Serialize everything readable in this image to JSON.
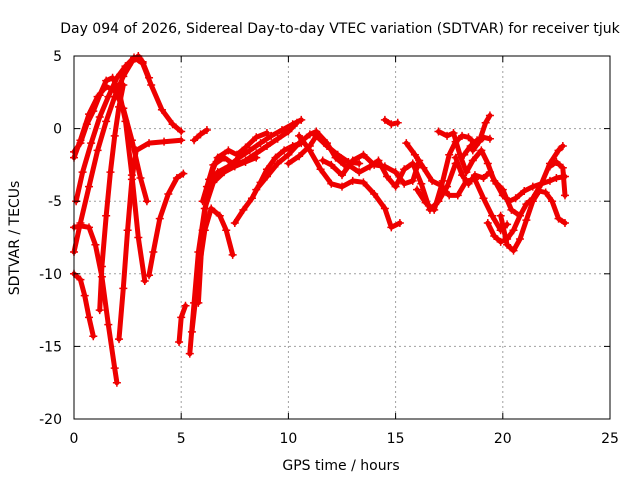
{
  "chart_data": {
    "type": "scatter",
    "title": "Day 094 of 2026, Sidereal Day-to-day VTEC variation (SDTVAR) for receiver tjuk",
    "xlabel": "GPS time / hours",
    "ylabel": "SDTVAR / TECUs",
    "xlim": [
      0,
      25
    ],
    "ylim": [
      -20,
      5
    ],
    "xticks": [
      "0",
      "5",
      "10",
      "15",
      "20",
      "25"
    ],
    "yticks": [
      "5",
      "0",
      "-5",
      "-10",
      "-15",
      "-20"
    ],
    "grid": true,
    "marker": "+",
    "color": "#ee0000",
    "series": [
      {
        "name": "s1",
        "points": [
          [
            0.0,
            -1.6
          ],
          [
            0.3,
            -1.0
          ],
          [
            0.6,
            0.3
          ],
          [
            0.9,
            1.2
          ],
          [
            1.2,
            2.3
          ],
          [
            1.5,
            3.3
          ],
          [
            1.8,
            3.5
          ],
          [
            2.1,
            2.6
          ],
          [
            2.4,
            0.5
          ],
          [
            2.7,
            -3.2
          ],
          [
            3.0,
            -7.5
          ],
          [
            3.3,
            -10.5
          ]
        ]
      },
      {
        "name": "s2",
        "points": [
          [
            0.0,
            -2.0
          ],
          [
            0.3,
            -0.8
          ],
          [
            0.7,
            1.0
          ],
          [
            1.1,
            2.2
          ],
          [
            1.5,
            2.9
          ],
          [
            1.9,
            2.6
          ],
          [
            2.3,
            1.4
          ],
          [
            2.7,
            -0.8
          ],
          [
            3.1,
            -3.4
          ],
          [
            3.4,
            -5.0
          ]
        ]
      },
      {
        "name": "s3",
        "points": [
          [
            0.1,
            -5.0
          ],
          [
            0.4,
            -3.0
          ],
          [
            0.8,
            -1.0
          ],
          [
            1.2,
            0.8
          ],
          [
            1.6,
            2.2
          ],
          [
            2.0,
            3.5
          ],
          [
            2.4,
            4.3
          ],
          [
            2.8,
            4.9
          ],
          [
            3.2,
            4.5
          ],
          [
            3.6,
            3.0
          ],
          [
            4.1,
            1.3
          ],
          [
            4.6,
            0.3
          ],
          [
            5.0,
            -0.2
          ]
        ]
      },
      {
        "name": "s4",
        "points": [
          [
            0.0,
            -8.5
          ],
          [
            0.3,
            -6.5
          ],
          [
            0.7,
            -4.0
          ],
          [
            1.1,
            -1.5
          ],
          [
            1.5,
            0.5
          ],
          [
            1.9,
            2.2
          ],
          [
            2.3,
            3.6
          ],
          [
            2.7,
            4.6
          ],
          [
            3.0,
            5.0
          ],
          [
            3.2,
            4.6
          ],
          [
            3.5,
            3.5
          ]
        ]
      },
      {
        "name": "s5",
        "points": [
          [
            0.0,
            -6.8
          ],
          [
            0.3,
            -6.7
          ],
          [
            0.7,
            -6.8
          ],
          [
            1.0,
            -8.0
          ],
          [
            1.3,
            -10.2
          ],
          [
            1.6,
            -13.5
          ],
          [
            1.9,
            -16.5
          ],
          [
            2.0,
            -17.5
          ]
        ]
      },
      {
        "name": "s6",
        "points": [
          [
            0.0,
            -10.0
          ],
          [
            0.3,
            -10.4
          ],
          [
            0.5,
            -11.5
          ],
          [
            0.7,
            -13.0
          ],
          [
            0.9,
            -14.3
          ]
        ]
      },
      {
        "name": "s7",
        "points": [
          [
            1.2,
            -12.5
          ],
          [
            1.3,
            -9.5
          ],
          [
            1.5,
            -6.0
          ],
          [
            1.7,
            -3.0
          ],
          [
            1.9,
            -0.5
          ],
          [
            2.1,
            1.5
          ],
          [
            2.3,
            3.0
          ]
        ]
      },
      {
        "name": "s8",
        "points": [
          [
            2.1,
            -14.5
          ],
          [
            2.3,
            -11.0
          ],
          [
            2.5,
            -7.0
          ],
          [
            2.7,
            -3.5
          ],
          [
            2.9,
            -1.5
          ],
          [
            3.5,
            -1.0
          ],
          [
            4.2,
            -0.9
          ],
          [
            5.0,
            -0.8
          ]
        ]
      },
      {
        "name": "s9",
        "points": [
          [
            3.5,
            -10.1
          ],
          [
            3.7,
            -8.5
          ],
          [
            4.0,
            -6.2
          ],
          [
            4.4,
            -4.5
          ],
          [
            4.8,
            -3.4
          ],
          [
            5.1,
            -3.1
          ]
        ]
      },
      {
        "name": "s10",
        "points": [
          [
            4.9,
            -14.7
          ],
          [
            5.0,
            -13.0
          ],
          [
            5.2,
            -12.2
          ]
        ]
      },
      {
        "name": "s11",
        "points": [
          [
            5.4,
            -15.5
          ],
          [
            5.6,
            -12.0
          ],
          [
            5.8,
            -8.5
          ],
          [
            6.1,
            -5.5
          ],
          [
            6.5,
            -3.7
          ],
          [
            7.0,
            -3.0
          ],
          [
            7.5,
            -2.6
          ],
          [
            8.0,
            -2.3
          ],
          [
            8.5,
            -2.0
          ]
        ]
      },
      {
        "name": "s12",
        "points": [
          [
            5.5,
            -14.0
          ],
          [
            5.8,
            -10.0
          ],
          [
            6.1,
            -7.0
          ],
          [
            6.4,
            -5.5
          ],
          [
            6.8,
            -6.0
          ],
          [
            7.1,
            -7.0
          ],
          [
            7.4,
            -8.7
          ]
        ]
      },
      {
        "name": "s13",
        "points": [
          [
            5.6,
            -0.8
          ],
          [
            5.9,
            -0.4
          ],
          [
            6.2,
            -0.1
          ]
        ]
      },
      {
        "name": "s14",
        "points": [
          [
            5.8,
            -12.0
          ],
          [
            6.0,
            -7.0
          ],
          [
            6.3,
            -3.5
          ],
          [
            6.7,
            -2.0
          ],
          [
            7.2,
            -1.5
          ],
          [
            7.6,
            -1.8
          ],
          [
            8.0,
            -1.3
          ],
          [
            8.5,
            -0.6
          ],
          [
            9.0,
            -0.3
          ]
        ]
      },
      {
        "name": "s15",
        "points": [
          [
            6.0,
            -5.0
          ],
          [
            6.5,
            -2.5
          ],
          [
            7.0,
            -2.0
          ],
          [
            7.5,
            -2.5
          ],
          [
            8.0,
            -2.2
          ],
          [
            8.5,
            -1.7
          ],
          [
            9.0,
            -1.2
          ],
          [
            9.5,
            -0.7
          ],
          [
            10.0,
            -0.2
          ],
          [
            10.4,
            0.4
          ]
        ]
      },
      {
        "name": "s16",
        "points": [
          [
            6.2,
            -4.0
          ],
          [
            6.7,
            -3.0
          ],
          [
            7.2,
            -2.6
          ],
          [
            7.7,
            -2.0
          ],
          [
            8.2,
            -1.5
          ],
          [
            8.7,
            -1.0
          ],
          [
            9.2,
            -0.5
          ],
          [
            9.7,
            -0.1
          ],
          [
            10.2,
            0.3
          ],
          [
            10.6,
            0.6
          ]
        ]
      },
      {
        "name": "s17",
        "points": [
          [
            7.5,
            -6.5
          ],
          [
            7.9,
            -5.6
          ],
          [
            8.3,
            -4.8
          ],
          [
            8.7,
            -3.7
          ],
          [
            9.0,
            -2.8
          ],
          [
            9.4,
            -2.0
          ],
          [
            9.8,
            -1.5
          ],
          [
            10.2,
            -1.2
          ],
          [
            10.6,
            -1.0
          ]
        ]
      },
      {
        "name": "s18",
        "points": [
          [
            8.5,
            -4.2
          ],
          [
            9.0,
            -3.3
          ],
          [
            9.5,
            -2.4
          ],
          [
            10.0,
            -1.8
          ],
          [
            10.5,
            -1.0
          ],
          [
            11.0,
            -0.4
          ],
          [
            11.3,
            -0.2
          ],
          [
            11.8,
            -1.0
          ],
          [
            12.2,
            -2.0
          ],
          [
            12.6,
            -2.5
          ]
        ]
      },
      {
        "name": "s19",
        "points": [
          [
            10.0,
            -2.4
          ],
          [
            10.5,
            -1.9
          ],
          [
            11.0,
            -1.2
          ],
          [
            11.3,
            -0.5
          ],
          [
            11.8,
            -1.2
          ],
          [
            12.3,
            -1.8
          ],
          [
            12.8,
            -2.3
          ],
          [
            13.3,
            -2.4
          ]
        ]
      },
      {
        "name": "s20",
        "points": [
          [
            10.5,
            -0.5
          ],
          [
            11.0,
            -1.5
          ],
          [
            11.5,
            -2.8
          ],
          [
            12.0,
            -3.8
          ],
          [
            12.5,
            -4.0
          ],
          [
            13.0,
            -3.6
          ],
          [
            13.5,
            -3.7
          ],
          [
            14.0,
            -4.5
          ],
          [
            14.5,
            -5.5
          ],
          [
            14.8,
            -6.8
          ],
          [
            15.2,
            -6.5
          ]
        ]
      },
      {
        "name": "s21",
        "points": [
          [
            11.6,
            -2.2
          ],
          [
            12.0,
            -2.5
          ],
          [
            12.5,
            -3.2
          ],
          [
            13.0,
            -2.2
          ],
          [
            13.5,
            -1.8
          ],
          [
            14.0,
            -2.5
          ],
          [
            14.5,
            -2.6
          ],
          [
            15.0,
            -3.0
          ],
          [
            15.4,
            -3.8
          ],
          [
            15.8,
            -3.6
          ],
          [
            16.1,
            -2.2
          ]
        ]
      },
      {
        "name": "s22",
        "points": [
          [
            12.8,
            -2.5
          ],
          [
            13.3,
            -3.0
          ],
          [
            13.8,
            -2.6
          ],
          [
            14.2,
            -2.2
          ],
          [
            14.6,
            -3.3
          ],
          [
            15.0,
            -4.0
          ],
          [
            15.4,
            -2.8
          ],
          [
            15.8,
            -2.4
          ],
          [
            16.2,
            -3.8
          ],
          [
            16.6,
            -5.6
          ],
          [
            17.0,
            -5.0
          ],
          [
            17.4,
            -4.0
          ],
          [
            17.8,
            -2.4
          ]
        ]
      },
      {
        "name": "s23",
        "points": [
          [
            14.5,
            0.6
          ],
          [
            14.8,
            0.3
          ],
          [
            15.1,
            0.4
          ]
        ]
      },
      {
        "name": "s24",
        "points": [
          [
            15.5,
            -1.0
          ],
          [
            15.9,
            -1.8
          ],
          [
            16.3,
            -2.7
          ],
          [
            16.7,
            -3.6
          ],
          [
            17.1,
            -3.9
          ],
          [
            17.5,
            -4.6
          ],
          [
            17.9,
            -4.6
          ],
          [
            18.3,
            -3.6
          ],
          [
            18.7,
            -3.5
          ],
          [
            19.1,
            -4.8
          ],
          [
            19.5,
            -6.0
          ],
          [
            19.9,
            -7.0
          ],
          [
            20.2,
            -6.6
          ]
        ]
      },
      {
        "name": "s25",
        "points": [
          [
            16.0,
            -4.2
          ],
          [
            16.4,
            -5.1
          ],
          [
            16.8,
            -5.6
          ],
          [
            17.2,
            -3.6
          ],
          [
            17.5,
            -1.8
          ],
          [
            17.8,
            -0.9
          ],
          [
            18.1,
            -0.5
          ],
          [
            18.4,
            -0.6
          ],
          [
            18.7,
            -1.0
          ],
          [
            19.0,
            -0.7
          ]
        ]
      },
      {
        "name": "s26",
        "points": [
          [
            17.0,
            -0.2
          ],
          [
            17.4,
            -0.5
          ],
          [
            17.7,
            -0.3
          ],
          [
            18.0,
            -1.8
          ],
          [
            18.3,
            -3.0
          ],
          [
            18.6,
            -2.2
          ],
          [
            19.0,
            -1.5
          ],
          [
            19.3,
            -2.4
          ],
          [
            19.6,
            -3.6
          ],
          [
            20.0,
            -4.2
          ],
          [
            20.4,
            -5.6
          ],
          [
            20.8,
            -6.0
          ]
        ]
      },
      {
        "name": "s27",
        "points": [
          [
            17.8,
            -2.0
          ],
          [
            18.1,
            -3.2
          ],
          [
            18.4,
            -3.8
          ],
          [
            18.7,
            -3.2
          ],
          [
            19.1,
            -3.4
          ],
          [
            19.4,
            -3.0
          ],
          [
            19.7,
            -3.8
          ],
          [
            20.0,
            -4.6
          ],
          [
            20.3,
            -5.0
          ],
          [
            20.6,
            -4.8
          ],
          [
            21.0,
            -4.3
          ],
          [
            21.4,
            -4.0
          ],
          [
            21.8,
            -3.8
          ],
          [
            22.2,
            -3.6
          ],
          [
            22.5,
            -3.4
          ],
          [
            22.9,
            -3.3
          ]
        ]
      },
      {
        "name": "s28",
        "points": [
          [
            18.2,
            -1.8
          ],
          [
            18.5,
            -1.2
          ],
          [
            18.8,
            -0.8
          ],
          [
            19.1,
            -0.6
          ],
          [
            19.4,
            -0.7
          ]
        ]
      },
      {
        "name": "s29",
        "points": [
          [
            18.6,
            -1.5
          ],
          [
            18.9,
            -0.9
          ],
          [
            19.2,
            0.4
          ],
          [
            19.4,
            0.9
          ]
        ]
      },
      {
        "name": "s30",
        "points": [
          [
            19.3,
            -6.5
          ],
          [
            19.6,
            -7.4
          ],
          [
            19.9,
            -7.8
          ],
          [
            20.2,
            -7.6
          ],
          [
            20.5,
            -7.0
          ],
          [
            20.8,
            -6.0
          ],
          [
            21.1,
            -5.2
          ],
          [
            21.4,
            -4.8
          ],
          [
            21.8,
            -3.8
          ],
          [
            22.2,
            -2.4
          ],
          [
            22.6,
            -1.5
          ],
          [
            22.8,
            -1.2
          ]
        ]
      },
      {
        "name": "s31",
        "points": [
          [
            19.9,
            -6.0
          ],
          [
            20.2,
            -8.0
          ],
          [
            20.5,
            -8.4
          ],
          [
            20.8,
            -7.6
          ],
          [
            21.1,
            -6.3
          ],
          [
            21.4,
            -5.0
          ],
          [
            21.7,
            -4.3
          ],
          [
            22.0,
            -4.4
          ],
          [
            22.3,
            -5.0
          ],
          [
            22.6,
            -6.2
          ],
          [
            22.9,
            -6.5
          ]
        ]
      },
      {
        "name": "s32",
        "points": [
          [
            22.2,
            -2.6
          ],
          [
            22.5,
            -2.3
          ],
          [
            22.8,
            -2.7
          ],
          [
            22.9,
            -4.6
          ]
        ]
      }
    ]
  }
}
